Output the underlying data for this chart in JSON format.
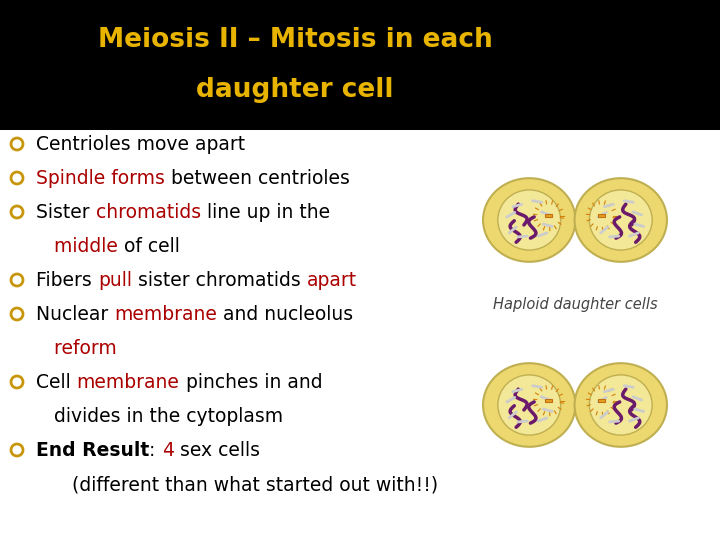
{
  "title_line1": "Meiosis II – Mitosis in each",
  "title_line2": "daughter cell",
  "title_color": "#E8B400",
  "title_bg": "#000000",
  "bg_color": "#FFFFFF",
  "bullet_color": "#C8960A",
  "bullet_lines": [
    [
      {
        "text": "Centrioles move apart",
        "color": "#000000",
        "bold": false
      }
    ],
    [
      {
        "text": "Spindle forms",
        "color": "#AA0000",
        "bold": false
      },
      {
        "text": " between centrioles",
        "color": "#000000",
        "bold": false
      }
    ],
    [
      {
        "text": "Sister ",
        "color": "#000000",
        "bold": false
      },
      {
        "text": "chromatids",
        "color": "#AA0000",
        "bold": false
      },
      {
        "text": " line up in the",
        "color": "#000000",
        "bold": false
      }
    ],
    [
      {
        "text": "   middle",
        "color": "#AA0000",
        "bold": false
      },
      {
        "text": " of cell",
        "color": "#000000",
        "bold": false
      }
    ],
    [
      {
        "text": "Fibers ",
        "color": "#000000",
        "bold": false
      },
      {
        "text": "pull",
        "color": "#AA0000",
        "bold": false
      },
      {
        "text": " sister chromatids ",
        "color": "#000000",
        "bold": false
      },
      {
        "text": "apart",
        "color": "#AA0000",
        "bold": false
      }
    ],
    [
      {
        "text": "Nuclear ",
        "color": "#000000",
        "bold": false
      },
      {
        "text": "membrane",
        "color": "#AA0000",
        "bold": false
      },
      {
        "text": " and nucleolus",
        "color": "#000000",
        "bold": false
      }
    ],
    [
      {
        "text": "   reform",
        "color": "#AA0000",
        "bold": false
      }
    ],
    [
      {
        "text": "Cell ",
        "color": "#000000",
        "bold": false
      },
      {
        "text": "membrane",
        "color": "#AA0000",
        "bold": false
      },
      {
        "text": " pinches in and",
        "color": "#000000",
        "bold": false
      }
    ],
    [
      {
        "text": "   divides in the cytoplasm",
        "color": "#000000",
        "bold": false
      }
    ],
    [
      {
        "text": "End Result",
        "color": "#000000",
        "bold": true
      },
      {
        "text": ": ",
        "color": "#000000",
        "bold": false
      },
      {
        "text": "4",
        "color": "#AA0000",
        "bold": false
      },
      {
        "text": " sex cells",
        "color": "#000000",
        "bold": false
      }
    ],
    [
      {
        "text": "      (different than what started out with!!)",
        "color": "#000000",
        "bold": false
      }
    ]
  ],
  "no_bullet_lines": [
    3,
    6,
    8,
    10
  ],
  "caption": "Haploid daughter cells",
  "caption_color": "#444444",
  "title_fontsize": 19,
  "body_fontsize": 13.5
}
